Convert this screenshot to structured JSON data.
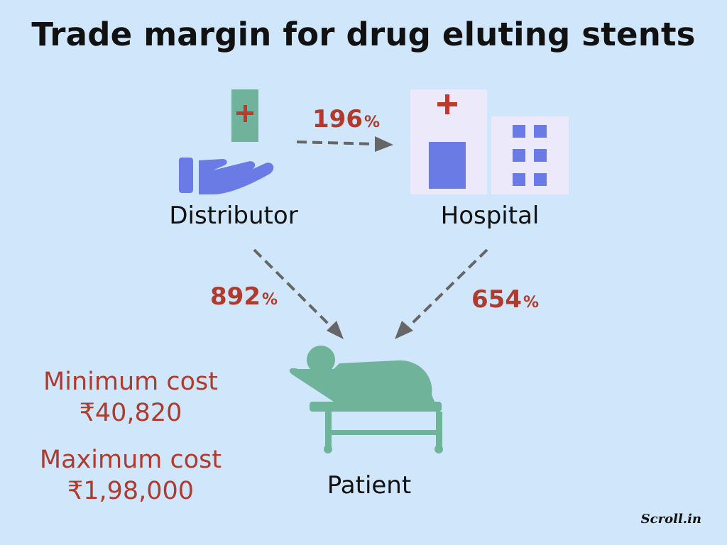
{
  "title": "Trade margin for drug eluting stents",
  "nodes": {
    "distributor": "Distributor",
    "hospital": "Hospital",
    "patient": "Patient"
  },
  "margins": {
    "distributor_to_hospital": {
      "value": "196",
      "unit": "%"
    },
    "distributor_to_patient": {
      "value": "892",
      "unit": "%"
    },
    "hospital_to_patient": {
      "value": "654",
      "unit": "%"
    }
  },
  "costs": {
    "minimum_label": "Minimum cost",
    "minimum_value": "₹40,820",
    "maximum_label": "Maximum cost",
    "maximum_value": "₹1,98,000"
  },
  "brand": "Scroll.in",
  "icons": {
    "distributor": "hand-holding-medicine-icon",
    "hospital": "hospital-building-icon",
    "patient": "patient-on-bed-icon"
  },
  "colors": {
    "background": "#cfe6fb",
    "accent_red": "#b03a2e",
    "icon_blue": "#6b7be6",
    "icon_green": "#6fb39a",
    "arrow_gray": "#666666"
  }
}
